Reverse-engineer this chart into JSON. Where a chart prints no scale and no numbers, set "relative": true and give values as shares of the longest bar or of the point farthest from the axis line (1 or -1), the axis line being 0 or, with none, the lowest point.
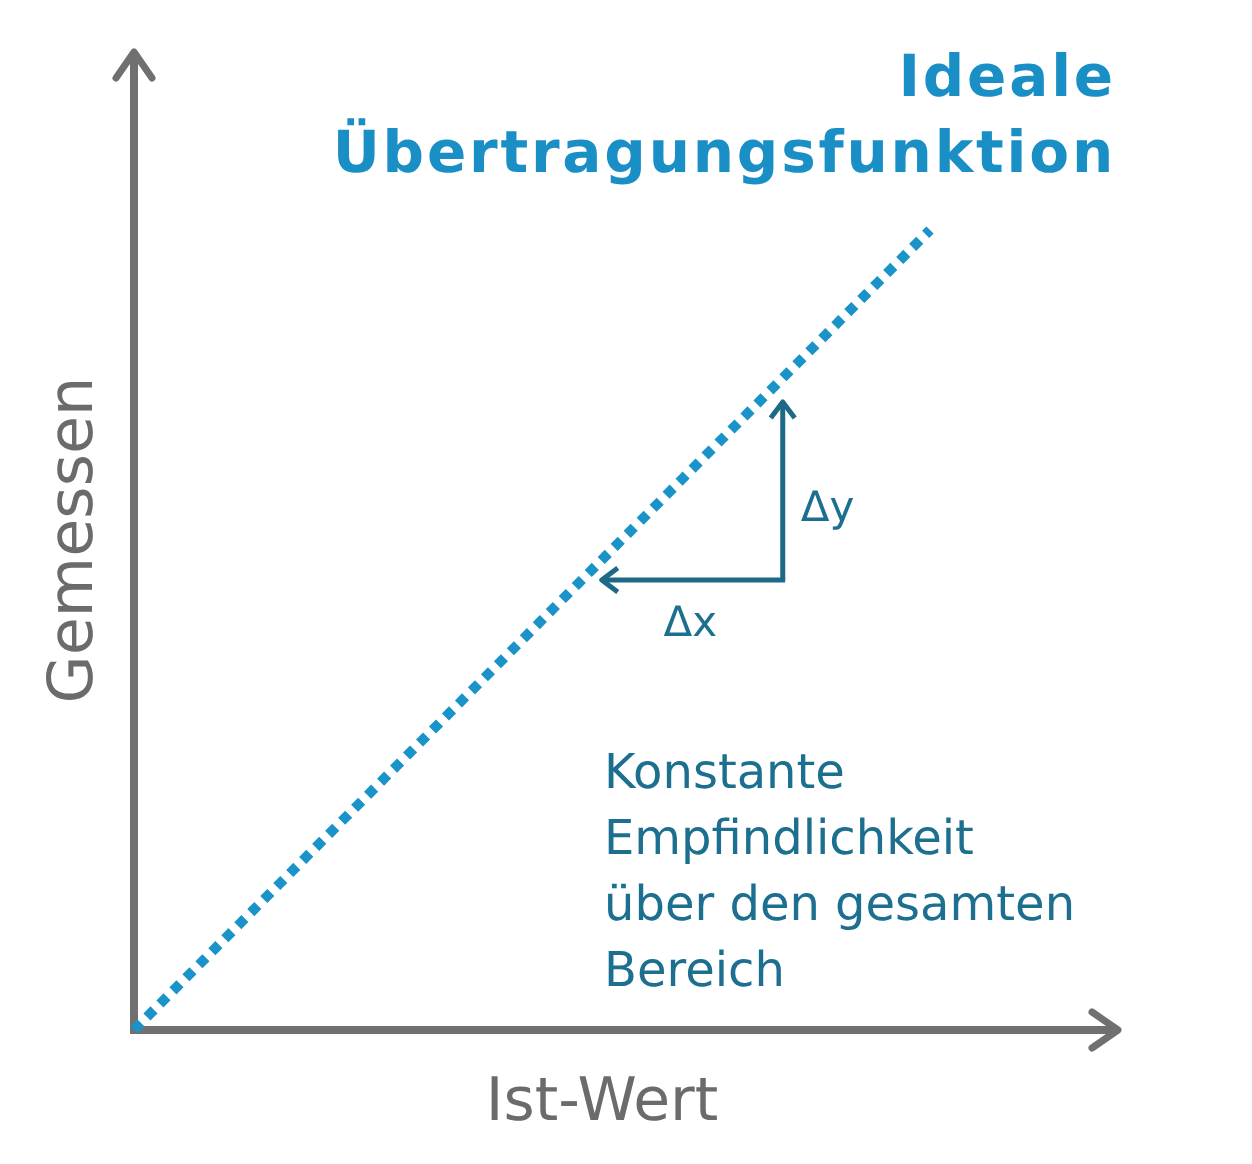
{
  "chart_data": {
    "type": "line",
    "title": "Ideale Übertragungsfunktion",
    "xlabel": "Ist-Wert",
    "ylabel": "Gemessen",
    "categories": [
      null,
      null
    ],
    "values": [
      0,
      1
    ],
    "color": "#1a93c9",
    "relative": true,
    "line_style": "dotted",
    "annotations": [
      "Δy",
      "Δx",
      "Konstante Empfindlichkeit über den gesamten Bereich"
    ]
  }
}
